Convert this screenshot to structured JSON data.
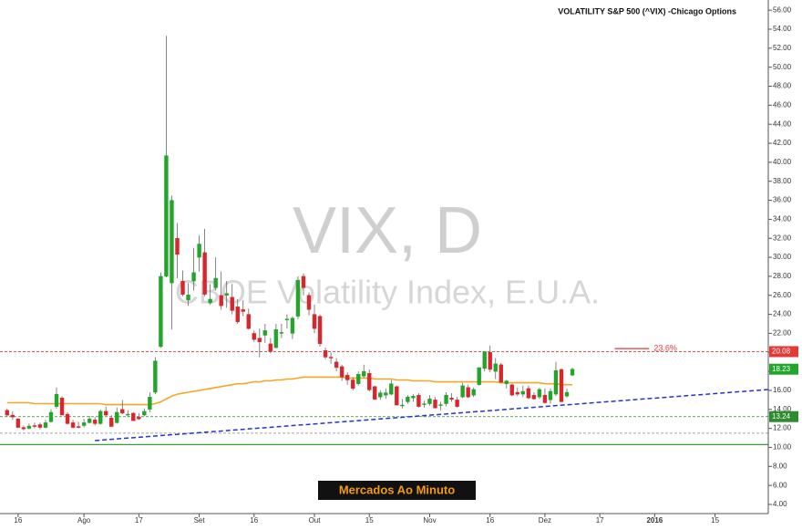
{
  "chart_data": {
    "type": "candlestick",
    "title": "VOLATILITY S&P 500 (^VIX) -Chicago Options",
    "watermark": "VIX, D",
    "watermark_subtitle": "CBOE Volatility Index, E.U.A.",
    "badge": "Mercados Ao Minuto",
    "up_color": "#22a52a",
    "down_color": "#d9262c",
    "xlim": [
      -1.3,
      138.7
    ],
    "ylim": [
      3.04,
      57.07
    ],
    "xticks": [
      {
        "value": 2,
        "label": "16"
      },
      {
        "value": 14,
        "label": "Ago"
      },
      {
        "value": 24,
        "label": "17"
      },
      {
        "value": 35,
        "label": "Set"
      },
      {
        "value": 45,
        "label": "16"
      },
      {
        "value": 56,
        "label": "Out"
      },
      {
        "value": 66,
        "label": "15"
      },
      {
        "value": 77,
        "label": "Nov"
      },
      {
        "value": 88,
        "label": "16"
      },
      {
        "value": 98,
        "label": "Dez"
      },
      {
        "value": 108,
        "label": "17"
      },
      {
        "value": 118,
        "label": "2016"
      },
      {
        "value": 129,
        "label": "15"
      }
    ],
    "yticks": [
      {
        "value": 4,
        "label": "4.00"
      },
      {
        "value": 6,
        "label": "6.00"
      },
      {
        "value": 8,
        "label": "8.00"
      },
      {
        "value": 10,
        "label": "10.00"
      },
      {
        "value": 12,
        "label": "12.00"
      },
      {
        "value": 14,
        "label": "14.00"
      },
      {
        "value": 16,
        "label": "16.00"
      },
      {
        "value": 18,
        "label": "18.00"
      },
      {
        "value": 20,
        "label": "20.00"
      },
      {
        "value": 22,
        "label": "22.00"
      },
      {
        "value": 24,
        "label": "24.00"
      },
      {
        "value": 26,
        "label": "26.00"
      },
      {
        "value": 28,
        "label": "28.00"
      },
      {
        "value": 30,
        "label": "30.00"
      },
      {
        "value": 32,
        "label": "32.00"
      },
      {
        "value": 34,
        "label": "34.00"
      },
      {
        "value": 36,
        "label": "36.00"
      },
      {
        "value": 38,
        "label": "38.00"
      },
      {
        "value": 40,
        "label": "40.00"
      },
      {
        "value": 42,
        "label": "42.00"
      },
      {
        "value": 44,
        "label": "44.00"
      },
      {
        "value": 46,
        "label": "46.00"
      },
      {
        "value": 48,
        "label": "48.00"
      },
      {
        "value": 50,
        "label": "50.00"
      },
      {
        "value": 52,
        "label": "52.00"
      },
      {
        "value": 54,
        "label": "54.00"
      },
      {
        "value": 56,
        "label": "56.00"
      }
    ],
    "candles": [
      [
        13.9,
        14.1,
        13.2,
        13.4
      ],
      [
        13.4,
        13.8,
        12.9,
        13.2
      ],
      [
        13.0,
        13.1,
        12.0,
        12.1
      ],
      [
        12.1,
        12.3,
        11.8,
        11.95
      ],
      [
        12.0,
        12.5,
        11.9,
        12.25
      ],
      [
        12.3,
        12.6,
        12.0,
        12.2
      ],
      [
        12.4,
        12.6,
        11.9,
        12.1
      ],
      [
        12.1,
        12.9,
        12.0,
        12.6
      ],
      [
        12.7,
        14.0,
        12.6,
        13.7
      ],
      [
        14.3,
        16.3,
        14.1,
        15.6
      ],
      [
        15.2,
        15.4,
        13.4,
        13.4
      ],
      [
        13.5,
        13.7,
        12.4,
        12.5
      ],
      [
        12.6,
        12.9,
        12.0,
        12.1
      ],
      [
        12.2,
        12.7,
        12.0,
        12.1
      ],
      [
        12.3,
        13.0,
        12.1,
        12.6
      ],
      [
        12.6,
        13.3,
        12.5,
        13.0
      ],
      [
        12.9,
        13.2,
        12.3,
        12.5
      ],
      [
        12.5,
        14.0,
        12.4,
        13.8
      ],
      [
        13.8,
        14.3,
        13.3,
        13.4
      ],
      [
        13.1,
        13.4,
        12.2,
        12.2
      ],
      [
        12.6,
        14.2,
        12.5,
        13.7
      ],
      [
        14.0,
        15.0,
        13.5,
        13.6
      ],
      [
        13.4,
        13.9,
        13.2,
        13.5
      ],
      [
        13.6,
        13.7,
        12.8,
        12.8
      ],
      [
        13.2,
        13.6,
        12.9,
        13.0
      ],
      [
        13.4,
        14.1,
        13.3,
        13.8
      ],
      [
        14.0,
        15.8,
        13.7,
        15.3
      ],
      [
        15.8,
        19.5,
        15.6,
        19.1
      ],
      [
        20.6,
        28.4,
        20.5,
        28.0
      ],
      [
        28.0,
        53.3,
        27.9,
        40.7
      ],
      [
        27.3,
        36.5,
        22.4,
        36.0
      ],
      [
        32.0,
        33.6,
        27.8,
        30.3
      ],
      [
        27.5,
        28.6,
        25.9,
        26.1
      ],
      [
        25.5,
        27.3,
        24.9,
        26.05
      ],
      [
        27.5,
        31.0,
        26.5,
        28.4
      ],
      [
        30.0,
        32.3,
        28.5,
        31.4
      ],
      [
        30.5,
        33.0,
        25.9,
        26.1
      ],
      [
        25.2,
        27.2,
        25.0,
        25.6
      ],
      [
        26.8,
        30.0,
        26.5,
        27.8
      ],
      [
        26.0,
        28.5,
        24.5,
        24.9
      ],
      [
        26.0,
        27.5,
        24.7,
        26.2
      ],
      [
        25.8,
        27.2,
        24.0,
        24.4
      ],
      [
        24.8,
        25.6,
        23.0,
        23.2
      ],
      [
        24.5,
        25.5,
        23.8,
        24.3
      ],
      [
        24.0,
        24.6,
        22.4,
        22.5
      ],
      [
        22.0,
        22.3,
        21.1,
        21.35
      ],
      [
        21.5,
        22.5,
        19.5,
        21.1
      ],
      [
        21.8,
        23.0,
        21.0,
        22.3
      ],
      [
        20.9,
        21.5,
        19.9,
        20.1
      ],
      [
        20.5,
        23.0,
        20.4,
        22.4
      ],
      [
        22.0,
        23.0,
        21.5,
        22.1
      ],
      [
        23.5,
        24.0,
        22.5,
        23.5
      ],
      [
        22.0,
        23.8,
        21.4,
        23.6
      ],
      [
        23.8,
        28.0,
        23.5,
        27.6
      ],
      [
        28.0,
        28.3,
        26.0,
        26.8
      ],
      [
        26.0,
        26.3,
        23.9,
        24.5
      ],
      [
        24.0,
        25.0,
        22.0,
        22.5
      ],
      [
        23.8,
        24.0,
        20.6,
        20.9
      ],
      [
        20.2,
        20.5,
        19.3,
        19.5
      ],
      [
        19.5,
        20.0,
        18.8,
        19.4
      ],
      [
        19.0,
        19.4,
        18.0,
        18.4
      ],
      [
        18.5,
        18.7,
        17.0,
        17.4
      ],
      [
        17.6,
        17.9,
        16.6,
        17.1
      ],
      [
        17.1,
        17.4,
        16.0,
        16.2
      ],
      [
        16.7,
        18.0,
        16.5,
        17.7
      ],
      [
        17.5,
        18.7,
        17.3,
        18.0
      ],
      [
        17.8,
        18.2,
        15.9,
        16.05
      ],
      [
        16.4,
        16.5,
        15.0,
        15.05
      ],
      [
        15.3,
        16.0,
        15.0,
        15.75
      ],
      [
        15.5,
        16.2,
        15.1,
        15.75
      ],
      [
        15.6,
        17.1,
        15.5,
        16.7
      ],
      [
        16.4,
        16.5,
        14.4,
        14.45
      ],
      [
        14.4,
        15.1,
        14.1,
        14.46
      ],
      [
        14.8,
        15.5,
        14.6,
        15.3
      ],
      [
        15.2,
        15.6,
        14.8,
        15.4
      ],
      [
        15.5,
        15.7,
        14.2,
        14.3
      ],
      [
        14.6,
        14.9,
        14.2,
        14.6
      ],
      [
        14.6,
        15.5,
        14.4,
        15.1
      ],
      [
        15.0,
        15.3,
        14.1,
        14.15
      ],
      [
        14.5,
        14.8,
        13.9,
        14.5
      ],
      [
        14.6,
        15.8,
        14.3,
        15.5
      ],
      [
        15.2,
        15.7,
        14.8,
        15.05
      ],
      [
        15.0,
        15.3,
        14.2,
        14.3
      ],
      [
        15.3,
        16.8,
        15.2,
        16.5
      ],
      [
        16.3,
        16.6,
        15.2,
        15.3
      ],
      [
        15.5,
        16.3,
        15.3,
        16.1
      ],
      [
        16.6,
        18.4,
        16.5,
        18.4
      ],
      [
        18.3,
        20.1,
        18.0,
        20.08
      ],
      [
        20.0,
        20.7,
        17.9,
        18.2
      ],
      [
        18.0,
        19.4,
        17.2,
        18.8
      ],
      [
        18.7,
        18.9,
        16.8,
        16.85
      ],
      [
        16.7,
        17.1,
        16.2,
        17.0
      ],
      [
        16.6,
        16.7,
        15.4,
        15.5
      ],
      [
        15.8,
        16.3,
        15.4,
        15.6
      ],
      [
        15.6,
        16.5,
        15.3,
        15.9
      ],
      [
        16.2,
        16.5,
        15.1,
        15.2
      ],
      [
        15.5,
        15.8,
        15.0,
        15.1
      ],
      [
        15.3,
        16.3,
        15.1,
        16.1
      ],
      [
        15.5,
        16.2,
        14.6,
        14.7
      ],
      [
        15.0,
        16.2,
        14.6,
        15.9
      ],
      [
        15.6,
        19.0,
        15.4,
        18.1
      ],
      [
        18.2,
        18.3,
        14.8,
        14.8
      ],
      [
        15.4,
        16.2,
        15.2,
        15.8
      ],
      [
        17.6,
        18.4,
        17.5,
        18.23
      ]
    ],
    "ma": {
      "color": "#f5a623",
      "values": [
        14.7,
        14.7,
        14.7,
        14.7,
        14.7,
        14.6,
        14.6,
        14.6,
        14.6,
        14.6,
        14.6,
        14.6,
        14.6,
        14.6,
        14.6,
        14.6,
        14.6,
        14.6,
        14.5,
        14.5,
        14.5,
        14.5,
        14.5,
        14.5,
        14.5,
        14.5,
        14.5,
        14.6,
        14.8,
        15.1,
        15.4,
        15.6,
        15.7,
        15.8,
        15.9,
        16.0,
        16.1,
        16.2,
        16.3,
        16.4,
        16.5,
        16.6,
        16.7,
        16.7,
        16.8,
        16.9,
        16.9,
        17.0,
        17.0,
        17.1,
        17.1,
        17.2,
        17.2,
        17.3,
        17.4,
        17.4,
        17.4,
        17.4,
        17.4,
        17.4,
        17.4,
        17.4,
        17.3,
        17.3,
        17.3,
        17.3,
        17.3,
        17.2,
        17.2,
        17.2,
        17.2,
        17.1,
        17.1,
        17.1,
        17.0,
        17.0,
        17.0,
        17.0,
        16.9,
        16.9,
        16.9,
        16.9,
        16.9,
        16.9,
        16.9,
        16.9,
        16.9,
        16.9,
        16.9,
        16.9,
        16.8,
        16.8,
        16.8,
        16.8,
        16.8,
        16.8,
        16.8,
        16.8,
        16.7,
        16.7,
        16.7,
        16.6,
        16.6,
        16.6
      ]
    },
    "levels": [
      {
        "value": 20.08,
        "color": "#e53935",
        "style": "dashed",
        "axis_label": true
      },
      {
        "value": 13.24,
        "color": "#2e8b2e",
        "style": "dashed",
        "axis_label": true
      },
      {
        "value": 11.5,
        "color": "#888888",
        "style": "dashed",
        "axis_label": false
      },
      {
        "value": 10.3,
        "color": "#3a9d3a",
        "style": "solid",
        "axis_label": false
      }
    ],
    "trendline": {
      "color": "#2233dd",
      "x": [
        16,
        138.7
      ],
      "y": [
        10.72,
        16.09
      ]
    },
    "fib_label": {
      "text": "23.6%",
      "color": "#e53935",
      "x": [
        110.7,
        117
      ],
      "y": 20.4
    }
  }
}
